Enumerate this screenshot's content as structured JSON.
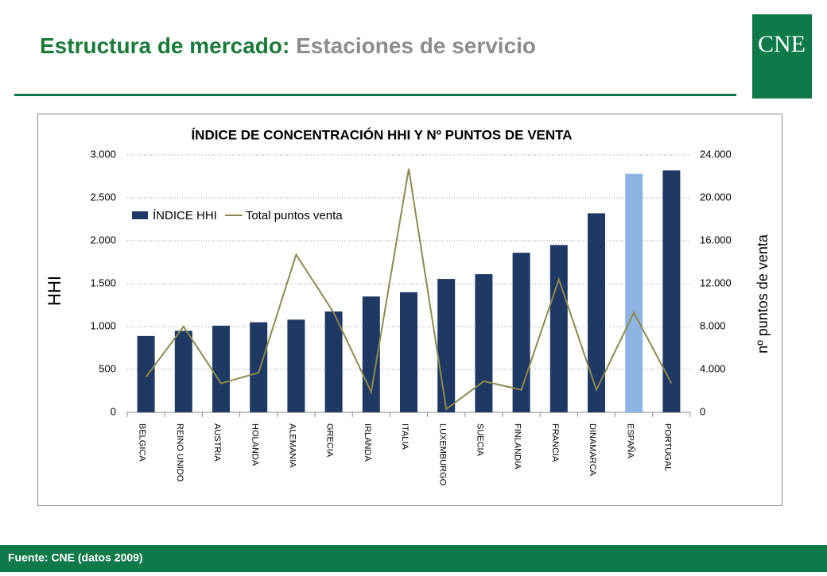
{
  "header": {
    "title_main": "Estructura de mercado:",
    "title_sub": "Estaciones de servicio",
    "logo": "CNE"
  },
  "footer": {
    "source": "Fuente: CNE (datos 2009)"
  },
  "chart_data": {
    "type": "bar_line",
    "title": "ÍNDICE DE CONCENTRACIÓN HHI Y Nº PUNTOS DE VENTA",
    "y_label": "HHI",
    "y2_label": "nº puntos de venta",
    "categories": [
      "BELGICA",
      "REINO UNIDO",
      "AUSTRIA",
      "HOLANDA",
      "ALEMANIA",
      "GRECIA",
      "IRLANDA",
      "ITALIA",
      "LUXEMBURGO",
      "SUECIA",
      "FINLANDIA",
      "FRANCIA",
      "DINAMARCA",
      "ESPAÑA",
      "PORTUGAL"
    ],
    "series": [
      {
        "name": "ÍNDICE HHI",
        "type": "bar",
        "color": "#1f3864",
        "colors": [
          "#1f3864",
          "#1f3864",
          "#1f3864",
          "#1f3864",
          "#1f3864",
          "#1f3864",
          "#1f3864",
          "#1f3864",
          "#1f3864",
          "#1f3864",
          "#1f3864",
          "#1f3864",
          "#1f3864",
          "#8db4e2",
          "#1f3864"
        ],
        "values": [
          890,
          950,
          1010,
          1050,
          1080,
          1175,
          1350,
          1400,
          1555,
          1610,
          1860,
          1950,
          2320,
          2780,
          2820
        ]
      },
      {
        "name": "Total puntos venta",
        "type": "line",
        "axis": "y2",
        "color": "#8c8a4f",
        "values": [
          3300,
          8000,
          2700,
          3700,
          14700,
          9300,
          1900,
          22700,
          300,
          2900,
          2100,
          12400,
          2100,
          9300,
          2700
        ]
      }
    ],
    "ylim": [
      0,
      3000
    ],
    "yticks": [
      0,
      500,
      {
        "value": 1000,
        "label": "1.000"
      },
      {
        "value": 1500,
        "label": "1.500"
      },
      {
        "value": 2000,
        "label": "2.000"
      },
      {
        "value": 2500,
        "label": "2.500"
      },
      {
        "value": 3000,
        "label": "3.000"
      }
    ],
    "y2lim": [
      0,
      24000
    ],
    "y2ticks": [
      0,
      {
        "value": 4000,
        "label": "4.000"
      },
      {
        "value": 8000,
        "label": "8.000"
      },
      {
        "value": 12000,
        "label": "12.000"
      },
      {
        "value": 16000,
        "label": "16.000"
      },
      {
        "value": 20000,
        "label": "20.000"
      },
      {
        "value": 24000,
        "label": "24.000"
      }
    ],
    "grid": true,
    "legend": "upper left"
  }
}
